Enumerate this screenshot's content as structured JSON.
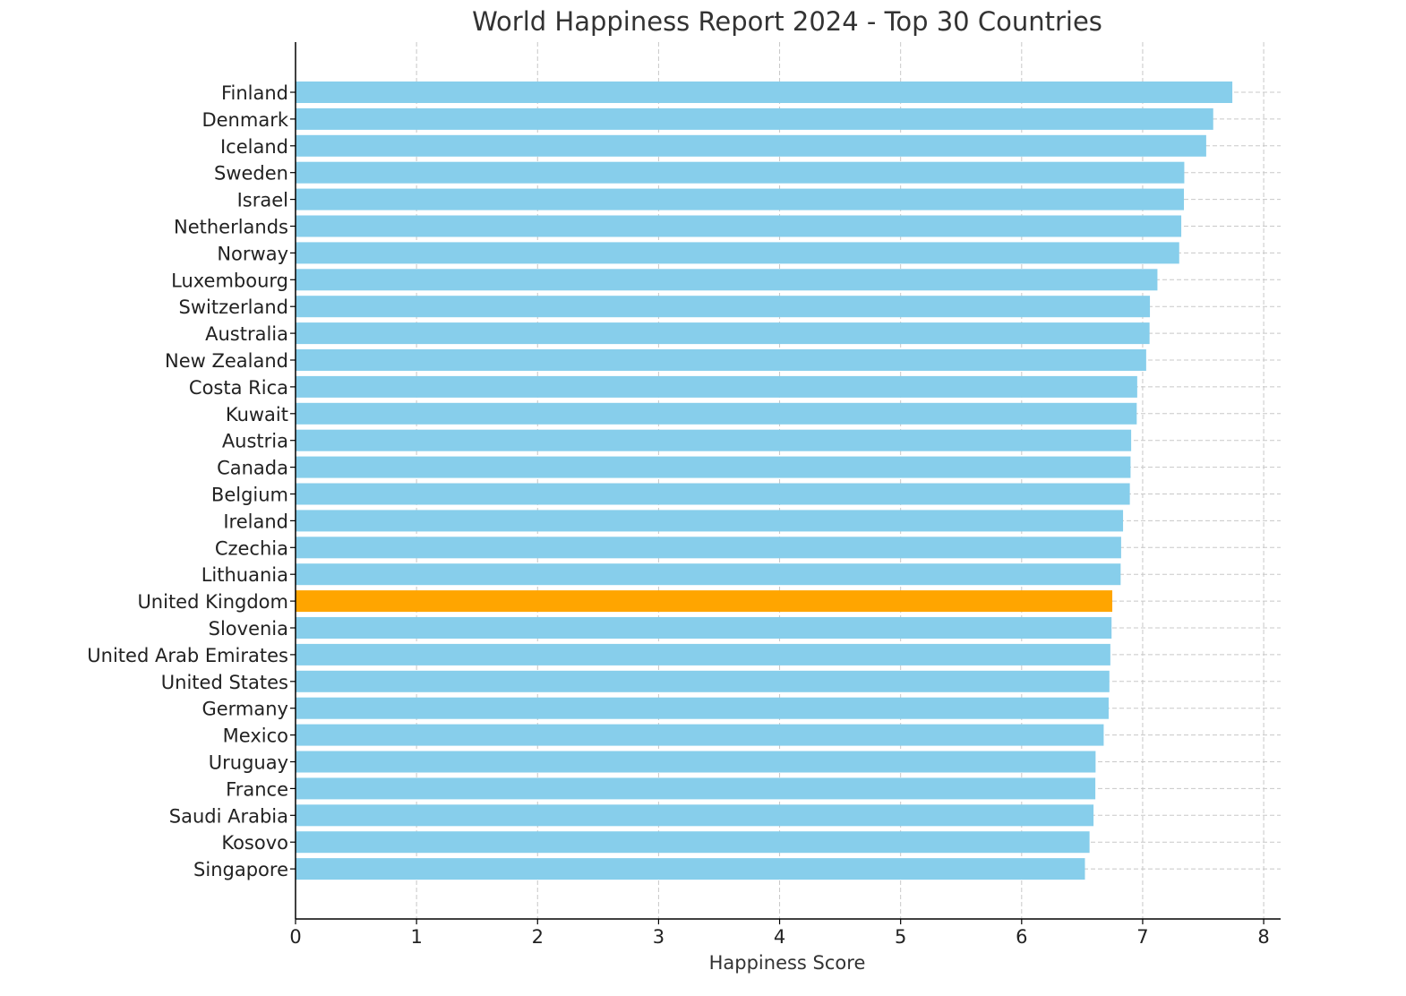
{
  "chart_data": {
    "type": "bar",
    "orientation": "horizontal",
    "title": "World Happiness Report 2024 - Top 30 Countries",
    "xlabel": "Happiness Score",
    "ylabel": "",
    "xlim": [
      0,
      8.14
    ],
    "xticks": [
      0,
      1,
      2,
      3,
      4,
      5,
      6,
      7,
      8
    ],
    "grid": true,
    "categories": [
      "Finland",
      "Denmark",
      "Iceland",
      "Sweden",
      "Israel",
      "Netherlands",
      "Norway",
      "Luxembourg",
      "Switzerland",
      "Australia",
      "New Zealand",
      "Costa Rica",
      "Kuwait",
      "Austria",
      "Canada",
      "Belgium",
      "Ireland",
      "Czechia",
      "Lithuania",
      "United Kingdom",
      "Slovenia",
      "United Arab Emirates",
      "United States",
      "Germany",
      "Mexico",
      "Uruguay",
      "France",
      "Saudi Arabia",
      "Kosovo",
      "Singapore"
    ],
    "values": [
      7.741,
      7.583,
      7.525,
      7.344,
      7.341,
      7.319,
      7.302,
      7.122,
      7.06,
      7.057,
      7.029,
      6.955,
      6.951,
      6.905,
      6.9,
      6.894,
      6.838,
      6.822,
      6.818,
      6.749,
      6.743,
      6.733,
      6.725,
      6.719,
      6.678,
      6.611,
      6.609,
      6.594,
      6.561,
      6.523
    ],
    "colors": {
      "default": "#87ceeb",
      "highlight": "#ffa500"
    },
    "highlight": "United Kingdom"
  }
}
